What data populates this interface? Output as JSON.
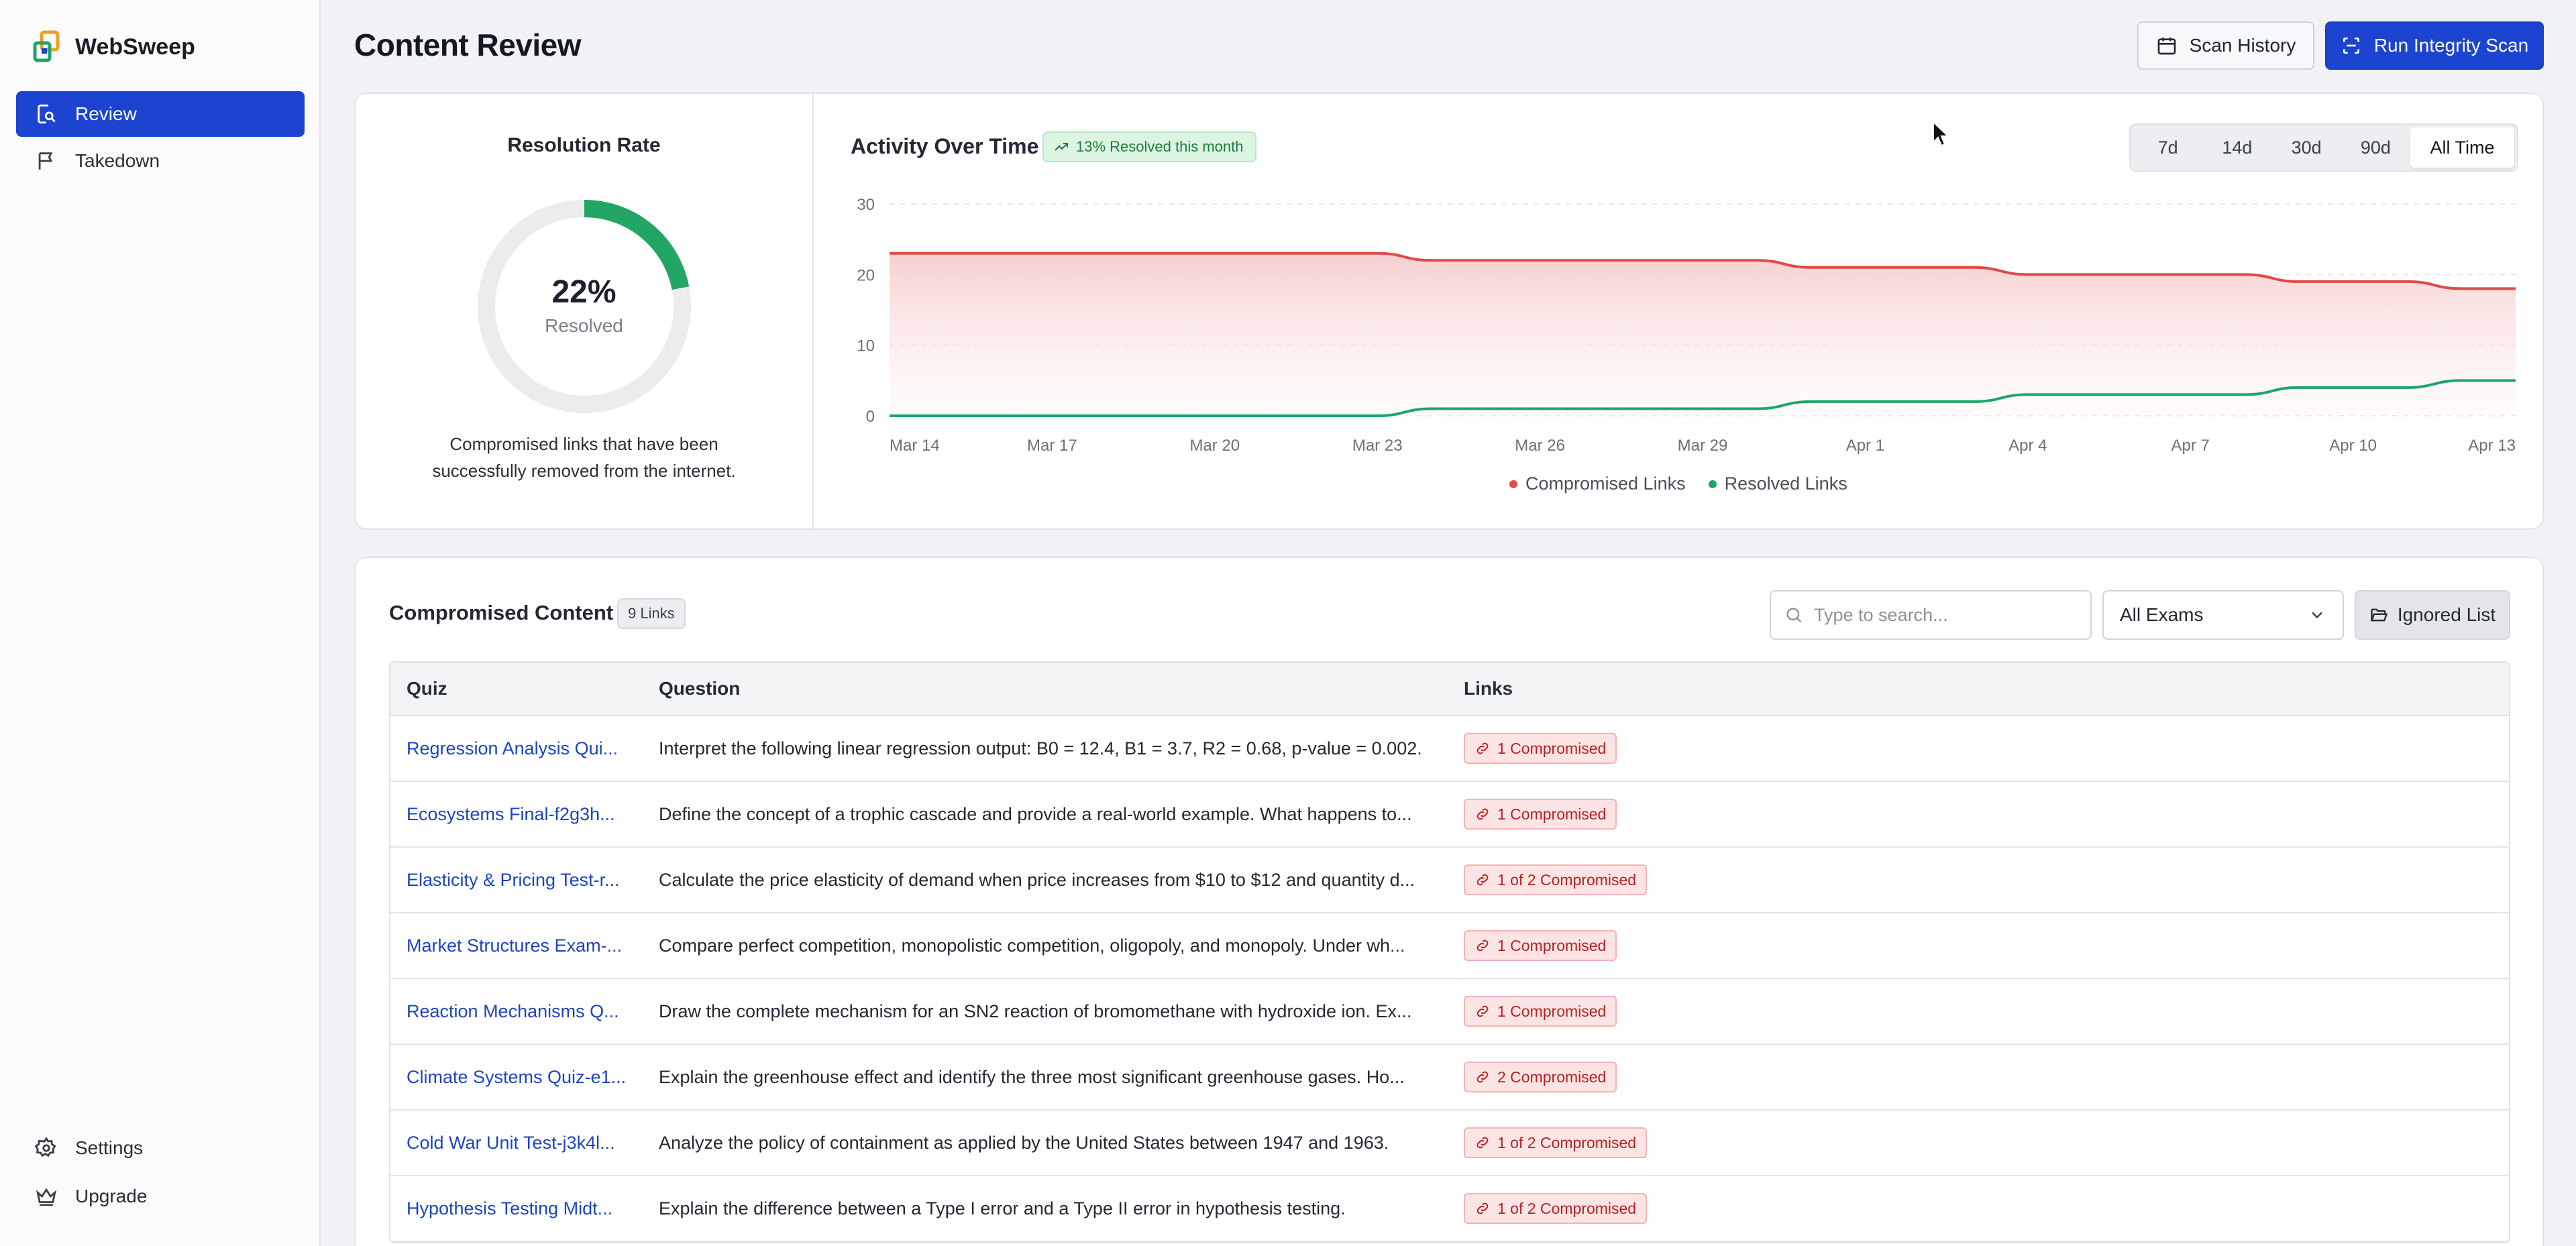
{
  "app": {
    "name": "WebSweep"
  },
  "sidebar": {
    "nav": [
      {
        "label": "Review",
        "icon": "review-search-icon",
        "active": true
      },
      {
        "label": "Takedown",
        "icon": "flag-icon",
        "active": false
      }
    ],
    "bottom": [
      {
        "label": "Settings",
        "icon": "gear-icon"
      },
      {
        "label": "Upgrade",
        "icon": "crown-icon"
      }
    ]
  },
  "header": {
    "title": "Content Review",
    "scan_history_label": "Scan History",
    "run_scan_label": "Run Integrity Scan"
  },
  "resolution": {
    "title": "Resolution Rate",
    "percent_label": "22%",
    "percent_value": 22,
    "sub_label": "Resolved",
    "description": "Compromised links that have been successfully removed from the internet."
  },
  "activity": {
    "title": "Activity Over Time",
    "badge": "13% Resolved this month",
    "ranges": [
      "7d",
      "14d",
      "30d",
      "90d",
      "All Time"
    ],
    "selected_range": "All Time"
  },
  "chart_data": {
    "type": "area",
    "x_ticks": [
      "Mar 14",
      "Mar 17",
      "Mar 20",
      "Mar 23",
      "Mar 26",
      "Mar 29",
      "Apr 1",
      "Apr 4",
      "Apr 7",
      "Apr 10",
      "Apr 13"
    ],
    "y_ticks": [
      0,
      10,
      20,
      30
    ],
    "ylim": [
      0,
      30
    ],
    "x_start": "Mar 14",
    "x_end": "Apr 13",
    "series": [
      {
        "name": "Compromised Links",
        "color": "#e04a4a",
        "points": [
          [
            "Mar 14",
            23
          ],
          [
            "Mar 23",
            23
          ],
          [
            "Mar 24",
            22
          ],
          [
            "Mar 30",
            22
          ],
          [
            "Mar 31",
            21
          ],
          [
            "Apr 3",
            21
          ],
          [
            "Apr 4",
            20
          ],
          [
            "Apr 8",
            20
          ],
          [
            "Apr 9",
            19
          ],
          [
            "Apr 11",
            19
          ],
          [
            "Apr 12",
            18
          ],
          [
            "Apr 13",
            18
          ]
        ]
      },
      {
        "name": "Resolved Links",
        "color": "#1ea66a",
        "points": [
          [
            "Mar 14",
            0
          ],
          [
            "Mar 23",
            0
          ],
          [
            "Mar 24",
            1
          ],
          [
            "Mar 30",
            1
          ],
          [
            "Mar 31",
            2
          ],
          [
            "Apr 3",
            2
          ],
          [
            "Apr 4",
            3
          ],
          [
            "Apr 8",
            3
          ],
          [
            "Apr 9",
            4
          ],
          [
            "Apr 11",
            4
          ],
          [
            "Apr 12",
            5
          ],
          [
            "Apr 13",
            5
          ]
        ]
      }
    ],
    "grid": true,
    "legend_position": "bottom-center"
  },
  "content": {
    "title": "Compromised Content",
    "count_badge": "9 Links",
    "search_placeholder": "Type to search...",
    "exam_filter": "All Exams",
    "ignored_label": "Ignored List",
    "columns": [
      "Quiz",
      "Question",
      "Links"
    ],
    "rows": [
      {
        "quiz": "Regression Analysis Qui...",
        "question": "Interpret the following linear regression output: B0 = 12.4, B1 = 3.7, R2 = 0.68, p-value = 0.002.",
        "links": "1 Compromised"
      },
      {
        "quiz": "Ecosystems Final-f2g3h...",
        "question": "Define the concept of a trophic cascade and provide a real-world example. What happens to...",
        "links": "1 Compromised"
      },
      {
        "quiz": "Elasticity & Pricing Test-r...",
        "question": "Calculate the price elasticity of demand when price increases from $10 to $12 and quantity d...",
        "links": "1 of 2 Compromised"
      },
      {
        "quiz": "Market Structures Exam-...",
        "question": "Compare perfect competition, monopolistic competition, oligopoly, and monopoly. Under wh...",
        "links": "1 Compromised"
      },
      {
        "quiz": "Reaction Mechanisms Q...",
        "question": "Draw the complete mechanism for an SN2 reaction of bromomethane with hydroxide ion. Ex...",
        "links": "1 Compromised"
      },
      {
        "quiz": "Climate Systems Quiz-e1...",
        "question": "Explain the greenhouse effect and identify the three most significant greenhouse gases. Ho...",
        "links": "2 Compromised"
      },
      {
        "quiz": "Cold War Unit Test-j3k4l...",
        "question": "Analyze the policy of containment as applied by the United States between 1947 and 1963.",
        "links": "1 of 2 Compromised"
      },
      {
        "quiz": "Hypothesis Testing Midt...",
        "question": "Explain the difference between a Type I error and a Type II error in hypothesis testing.",
        "links": "1 of 2 Compromised"
      }
    ]
  }
}
